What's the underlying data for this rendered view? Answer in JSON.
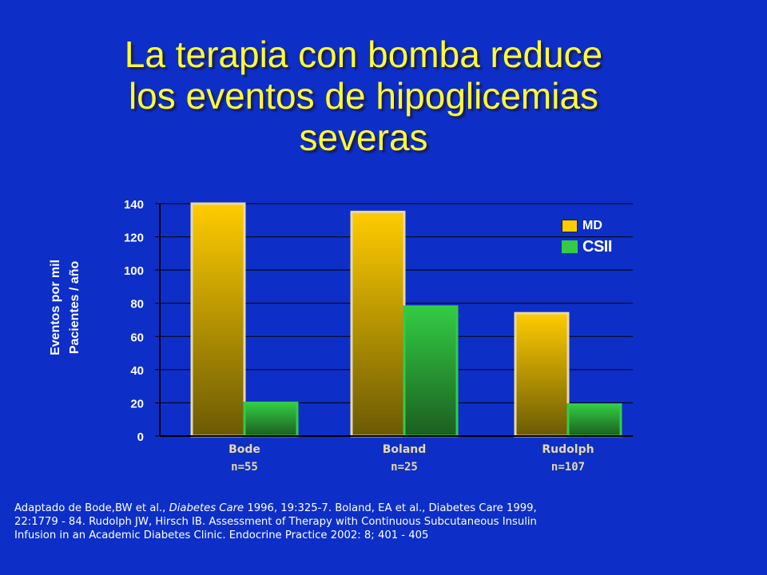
{
  "slide": {
    "title_lines": [
      "La terapia con bomba reduce",
      "los eventos de hipoglicemias",
      "severas"
    ],
    "footnote": {
      "line1_pre": "Adaptado de Bode,BW et al., ",
      "line1_journal": "Diabetes Care",
      "line1_post": " 1996, 19:325-7. Boland, EA et al., Diabetes Care 1999,",
      "line2": "22:1779 - 84. Rudolph JW, Hirsch IB. Assessment of Therapy with Continuous Subcutaneous Insulin",
      "line3": "Infusion in an Academic Diabetes Clinic. Endocrine Practice 2002: 8; 401 - 405"
    }
  },
  "colors": {
    "background": "#0d2fc7",
    "title": "#ffff33",
    "md_top": "#ffcc00",
    "md_bottom": "#6b5a05",
    "csii_top": "#33cc44",
    "csii_bottom": "#1b5e20",
    "label_tan": "#e8d9a8"
  },
  "chart_data": {
    "type": "bar",
    "title": "",
    "xlabel": "",
    "ylabel_lines": [
      "Eventos por mil",
      "Pacientes / año"
    ],
    "ylim": [
      0,
      140
    ],
    "yticks": [
      0,
      20,
      40,
      60,
      80,
      100,
      120,
      140
    ],
    "grid": true,
    "legend_position": "top-right",
    "categories": [
      "Bode",
      "Boland",
      "Rudolph"
    ],
    "category_sublabels": [
      "n=55",
      "n=25",
      "n=107"
    ],
    "series": [
      {
        "name": "MD",
        "values": [
          140,
          135,
          74
        ]
      },
      {
        "name": "CSII",
        "values": [
          20,
          78,
          19
        ]
      }
    ],
    "legend_labels": [
      "MD",
      "CSII"
    ]
  }
}
